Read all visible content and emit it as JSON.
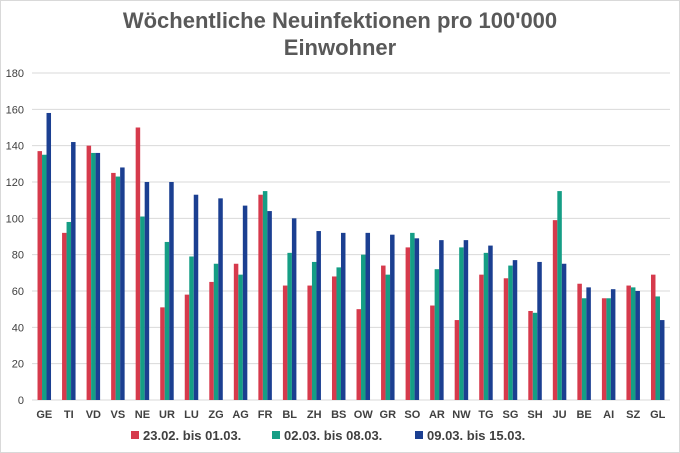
{
  "chart_data": {
    "type": "bar",
    "title_lines": [
      "Wöchentliche Neuinfektionen pro 100'000",
      "Einwohner"
    ],
    "categories": [
      "GE",
      "TI",
      "VD",
      "VS",
      "NE",
      "UR",
      "LU",
      "ZG",
      "AG",
      "FR",
      "BL",
      "ZH",
      "BS",
      "OW",
      "GR",
      "SO",
      "AR",
      "NW",
      "TG",
      "SG",
      "SH",
      "JU",
      "BE",
      "AI",
      "SZ",
      "GL"
    ],
    "series": [
      {
        "name": "23.02. bis 01.03.",
        "color": "#d63a4c",
        "values": [
          137,
          92,
          140,
          125,
          150,
          51,
          58,
          65,
          75,
          113,
          63,
          63,
          68,
          50,
          74,
          84,
          52,
          44,
          69,
          67,
          49,
          99,
          64,
          56,
          63,
          69
        ]
      },
      {
        "name": "02.03. bis 08.03.",
        "color": "#159e85",
        "values": [
          135,
          98,
          136,
          123,
          101,
          87,
          79,
          75,
          69,
          115,
          81,
          76,
          73,
          80,
          69,
          92,
          72,
          84,
          81,
          74,
          48,
          115,
          56,
          56,
          62,
          57
        ]
      },
      {
        "name": "09.03. bis 15.03.",
        "color": "#1b3f91",
        "values": [
          158,
          142,
          136,
          128,
          120,
          120,
          113,
          111,
          107,
          104,
          100,
          93,
          92,
          92,
          91,
          89,
          88,
          88,
          85,
          77,
          76,
          75,
          62,
          61,
          60,
          44
        ]
      }
    ],
    "ylim": [
      0,
      180
    ],
    "yticks": [
      0,
      20,
      40,
      60,
      80,
      100,
      120,
      140,
      160,
      180
    ],
    "grid": true,
    "legend": "bottom"
  }
}
